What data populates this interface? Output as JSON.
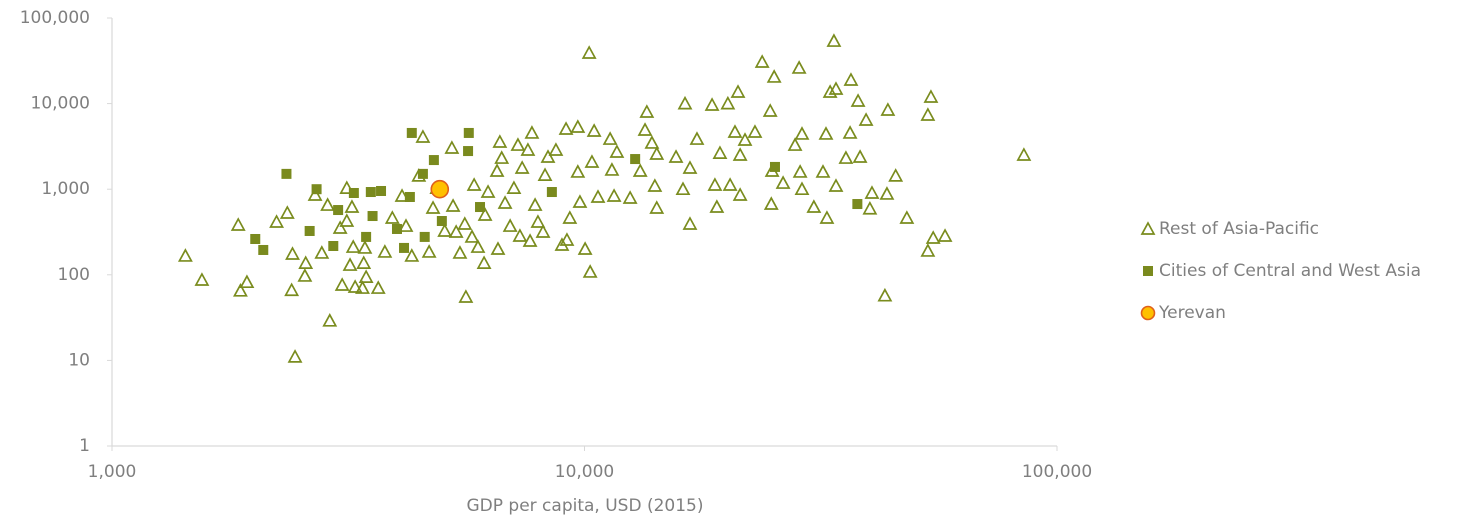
{
  "chart_data": {
    "type": "scatter",
    "log_x": true,
    "log_y": true,
    "x_label": "GDP per capita, USD (2015)",
    "xlim": [
      1000,
      100000
    ],
    "xticks": [
      {
        "value": 1000,
        "label": "1,000"
      },
      {
        "value": 10000,
        "label": "10,000"
      },
      {
        "value": 100000,
        "label": "100,000"
      }
    ],
    "ylim": [
      1,
      100000
    ],
    "yticks": [
      1,
      10,
      100,
      {
        "value": 1000,
        "label": "1,000"
      },
      {
        "value": 10000,
        "label": "10,000"
      },
      {
        "value": 100000,
        "label": "100,000"
      }
    ],
    "legend": "right",
    "series": [
      {
        "name": "Rest of Asia-Pacific",
        "marker": "triangle",
        "color": "#7a8c1e",
        "x": [
          1430,
          1550,
          1850,
          1870,
          1930,
          2230,
          2350,
          2400,
          2440,
          2410,
          2560,
          2570,
          2690,
          2780,
          2890,
          2860,
          3070,
          3140,
          3220,
          3190,
          3270,
          3390,
          3410,
          3450,
          3660,
          3240,
          3430,
          3040,
          3140,
          3780,
          3920,
          4110,
          4190,
          4310,
          4460,
          4550,
          4690,
          4780,
          4870,
          5060,
          5240,
          5270,
          5350,
          5450,
          5610,
          5580,
          5780,
          5840,
          5950,
          6130,
          6250,
          6160,
          6530,
          6620,
          6680,
          6560,
          6790,
          6960,
          7090,
          7230,
          7300,
          7380,
          7590,
          7740,
          7670,
          7860,
          7970,
          8250,
          8370,
          8700,
          8960,
          9140,
          9180,
          9310,
          9680,
          9780,
          9680,
          10030,
          10280,
          10230,
          10370,
          10480,
          10680,
          11330,
          11430,
          11550,
          11710,
          12490,
          13120,
          13430,
          13550,
          13890,
          14090,
          14220,
          14220,
          15620,
          16160,
          16320,
          16720,
          17300,
          16720,
          18620,
          18880,
          19060,
          19350,
          20110,
          20330,
          21130,
          20820,
          21350,
          21350,
          21860,
          22950,
          23770,
          24720,
          24950,
          24850,
          25200,
          26320,
          27900,
          28460,
          28600,
          28860,
          28860,
          30580,
          31970,
          32440,
          32590,
          33720,
          34060,
          33100,
          34060,
          36640,
          36480,
          35750,
          37930,
          38300,
          39440,
          40180,
          40590,
          43230,
          43660,
          43860,
          45560,
          48110,
          53300,
          54100,
          53300,
          54700,
          57950,
          85100,
          8170
        ],
        "values": [
          166,
          87,
          382,
          65,
          82,
          414,
          527,
          66,
          11,
          175,
          97,
          137,
          855,
          180,
          29,
          653,
          76,
          1030,
          619,
          130,
          72,
          70,
          137,
          94,
          70,
          211,
          206,
          352,
          425,
          185,
          461,
          833,
          371,
          166,
          1430,
          4070,
          185,
          603,
          1030,
          325,
          3030,
          637,
          316,
          180,
          55,
          392,
          277,
          1120,
          211,
          137,
          927,
          500,
          1630,
          3560,
          2310,
          200,
          690,
          371,
          1030,
          3280,
          284,
          1770,
          2870,
          4540,
          248,
          653,
          414,
          1460,
          2380,
          2870,
          223,
          5050,
          255,
          461,
          5330,
          708,
          1590,
          200,
          108,
          39000,
          2080,
          4790,
          811,
          3850,
          1680,
          833,
          2720,
          789,
          1630,
          4920,
          7980,
          3470,
          1090,
          603,
          2580,
          2380,
          1000,
          10000,
          392,
          3850,
          1770,
          9630,
          1120,
          619,
          2640,
          10000,
          1120,
          13670,
          4660,
          855,
          2510,
          3760,
          4660,
          30600,
          8200,
          1630,
          671,
          20500,
          1180,
          3280,
          26100,
          1590,
          4420,
          1000,
          619,
          1590,
          4420,
          461,
          53800,
          14820,
          13670,
          1090,
          18860,
          4540,
          2310,
          10720,
          2380,
          6430,
          591,
          903,
          57,
          880,
          8420,
          1430,
          461,
          7360,
          11940,
          190,
          269,
          284,
          2510,
          316
        ]
      },
      {
        "name": "Cities of Central and West Asia",
        "marker": "square",
        "color": "#7a8a1e",
        "x": [
          2010,
          2090,
          2340,
          2620,
          2710,
          3010,
          2940,
          3250,
          3530,
          3710,
          3560,
          3450,
          4150,
          4010,
          4270,
          4550,
          4310,
          4800,
          4590,
          4990,
          5690,
          5670,
          6010,
          8530,
          12800,
          25300,
          37800
        ],
        "values": [
          262,
          195,
          1510,
          325,
          1000,
          571,
          217,
          903,
          927,
          953,
          486,
          277,
          206,
          343,
          811,
          1510,
          4540,
          2190,
          277,
          425,
          4540,
          2790,
          619,
          927,
          2250,
          1820,
          671
        ]
      },
      {
        "name": "Yerevan",
        "marker": "circle",
        "color": "#ffc000",
        "edgecolor": "#e0601a",
        "x": [
          4940
        ],
        "values": [
          1000
        ]
      }
    ]
  }
}
